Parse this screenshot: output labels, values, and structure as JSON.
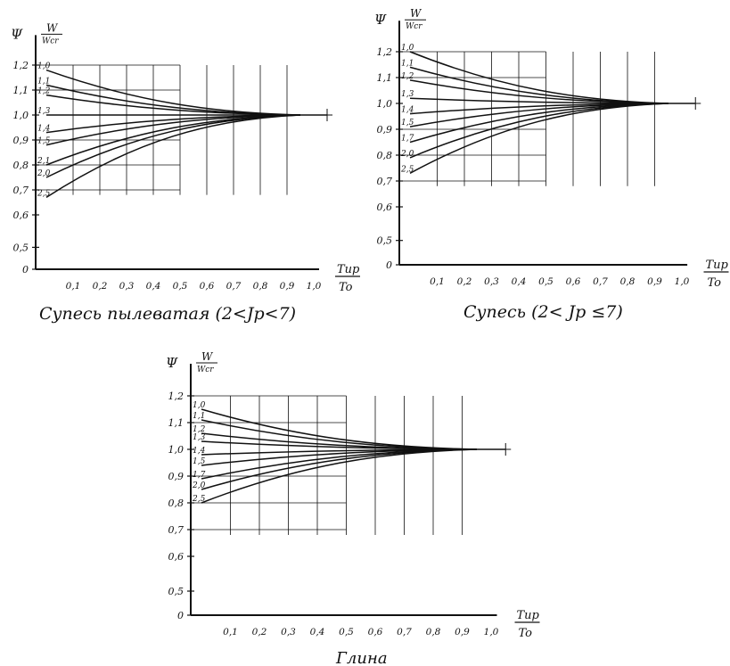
{
  "chart_data": [
    {
      "type": "line",
      "caption": "Супесь пылеватая (2<Jp<7)",
      "y_symbol": "Ψ",
      "ratio_label": {
        "num": "W",
        "den": "Wcr"
      },
      "x_label": {
        "num": "Tup",
        "den": "To"
      },
      "x_ticks": [
        "0,1",
        "0,2",
        "0,3",
        "0,4",
        "0,5",
        "0,6",
        "0,7",
        "0,8",
        "0,9",
        "1,0"
      ],
      "y_ticks": [
        "0",
        "0,5",
        "0,6",
        "0,7",
        "0,8",
        "0,9",
        "1,0",
        "1,1",
        "1,2"
      ],
      "xlim": [
        0,
        1.05
      ],
      "converge": 0.95,
      "series": [
        {
          "name": "1,0",
          "y0": 1.18
        },
        {
          "name": "1,1",
          "y0": 1.12
        },
        {
          "name": "1,2",
          "y0": 1.08
        },
        {
          "name": "1,3",
          "y0": 1.0
        },
        {
          "name": "1,4",
          "y0": 0.93
        },
        {
          "name": "1,5",
          "y0": 0.88
        },
        {
          "name": "2,1",
          "y0": 0.8
        },
        {
          "name": "2,0",
          "y0": 0.75
        },
        {
          "name": "2,5",
          "y0": 0.67
        }
      ]
    },
    {
      "type": "line",
      "caption": "Супесь (2< Jp ≤7)",
      "y_symbol": "Ψ",
      "ratio_label": {
        "num": "W",
        "den": "Wcr"
      },
      "x_label": {
        "num": "Tup",
        "den": "To"
      },
      "x_ticks": [
        "0,1",
        "0,2",
        "0,3",
        "0,4",
        "0,5",
        "0,6",
        "0,7",
        "0,8",
        "0,9",
        "1,0"
      ],
      "y_ticks": [
        "0",
        "0,5",
        "0,6",
        "0,7",
        "0,8",
        "0,9",
        "1,0",
        "1,1",
        "1,2"
      ],
      "xlim": [
        0,
        1.05
      ],
      "converge": 0.95,
      "series": [
        {
          "name": "1,0",
          "y0": 1.2
        },
        {
          "name": "1,1",
          "y0": 1.14
        },
        {
          "name": "1,2",
          "y0": 1.09
        },
        {
          "name": "1,3",
          "y0": 1.02
        },
        {
          "name": "1,4",
          "y0": 0.96
        },
        {
          "name": "1,5",
          "y0": 0.91
        },
        {
          "name": "1,7",
          "y0": 0.85
        },
        {
          "name": "2,0",
          "y0": 0.79
        },
        {
          "name": "2,5",
          "y0": 0.73
        }
      ]
    },
    {
      "type": "line",
      "caption": "Глина",
      "y_symbol": "Ψ",
      "ratio_label": {
        "num": "W",
        "den": "Wcr"
      },
      "x_label": {
        "num": "Tup",
        "den": "To"
      },
      "x_ticks": [
        "0,1",
        "0,2",
        "0,3",
        "0,4",
        "0,5",
        "0,6",
        "0,7",
        "0,8",
        "0,9",
        "1,0"
      ],
      "y_ticks": [
        "0",
        "0,5",
        "0,6",
        "0,7",
        "0,8",
        "0,9",
        "1,0",
        "1,1",
        "1,2"
      ],
      "xlim": [
        0,
        1.05
      ],
      "converge": 0.95,
      "series": [
        {
          "name": "1,0",
          "y0": 1.15
        },
        {
          "name": "1,1",
          "y0": 1.11
        },
        {
          "name": "1,2",
          "y0": 1.06
        },
        {
          "name": "1,3",
          "y0": 1.03
        },
        {
          "name": "1,4",
          "y0": 0.98
        },
        {
          "name": "1,5",
          "y0": 0.94
        },
        {
          "name": "1,7",
          "y0": 0.89
        },
        {
          "name": "2,0",
          "y0": 0.85
        },
        {
          "name": "2,5",
          "y0": 0.8
        }
      ]
    }
  ]
}
